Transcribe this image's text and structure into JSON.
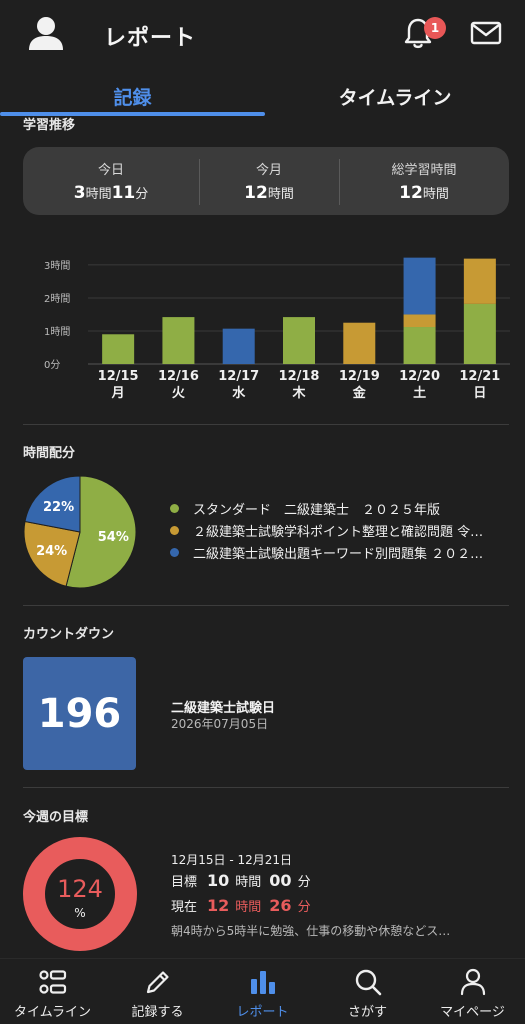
{
  "header": {
    "title": "レポート",
    "notification_count": "1"
  },
  "tabs": [
    {
      "label": "記録",
      "active": true
    },
    {
      "label": "タイムライン",
      "active": false
    }
  ],
  "study_trend": {
    "section_title": "学習推移",
    "summary": [
      {
        "label": "今日",
        "h": "3",
        "h_unit": "時間",
        "m": "11",
        "m_unit": "分"
      },
      {
        "label": "今月",
        "h": "12",
        "h_unit": "時間"
      },
      {
        "label": "総学習時間",
        "h": "12",
        "h_unit": "時間"
      }
    ]
  },
  "chart_data": {
    "type": "bar",
    "stacked": true,
    "y_ticks": [
      "0分",
      "1時間",
      "2時間",
      "3時間"
    ],
    "ylim": [
      0,
      3.3
    ],
    "categories": [
      "12/15",
      "12/16",
      "12/17",
      "12/18",
      "12/19",
      "12/20",
      "12/21"
    ],
    "weekdays": [
      "月",
      "火",
      "水",
      "木",
      "金",
      "土",
      "日"
    ],
    "series": [
      {
        "color": "#8fae45",
        "values": [
          0.9,
          1.42,
          0,
          1.42,
          0,
          1.12,
          1.82
        ]
      },
      {
        "color": "#c79a34",
        "values": [
          0,
          0,
          0,
          0,
          1.25,
          0.38,
          1.37
        ]
      },
      {
        "color": "#3567ad",
        "values": [
          0,
          0,
          1.07,
          0,
          0,
          1.72,
          0
        ]
      }
    ]
  },
  "time_allocation": {
    "section_title": "時間配分",
    "slices": [
      {
        "percent": 54,
        "label": "54%",
        "color": "#8fae45",
        "name": "スタンダード　二級建築士　２０２５年版"
      },
      {
        "percent": 24,
        "label": "24%",
        "color": "#c79a34",
        "name": "２級建築士試験学科ポイント整理と確認問題 令…"
      },
      {
        "percent": 22,
        "label": "22%",
        "color": "#3567ad",
        "name": "二級建築士試験出題キーワード別問題集 ２０２…"
      }
    ]
  },
  "countdown": {
    "section_title": "カウントダウン",
    "days": "196",
    "color": "#3d66a6",
    "event_name": "二級建築士試験日",
    "event_date": "2026年07月05日"
  },
  "weekly_goal": {
    "section_title": "今週の目標",
    "progress_percent": 124,
    "percent_value": "124",
    "percent_sign": "%",
    "ring_color": "#e85c5c",
    "range": "12月15日 - 12月21日",
    "target_label": "目標",
    "target_h": "10",
    "target_m": "00",
    "current_label": "現在",
    "current_h": "12",
    "current_m": "26",
    "hour_unit": "時間",
    "min_unit": "分",
    "note": "朝4時から5時半に勉強、仕事の移動や休憩などス…"
  },
  "bottom_nav": [
    {
      "label": "タイムライン",
      "icon": "list-icon"
    },
    {
      "label": "記録する",
      "icon": "pencil-icon"
    },
    {
      "label": "レポート",
      "icon": "bar-chart-icon",
      "active": true
    },
    {
      "label": "さがす",
      "icon": "search-icon"
    },
    {
      "label": "マイページ",
      "icon": "person-icon"
    }
  ]
}
